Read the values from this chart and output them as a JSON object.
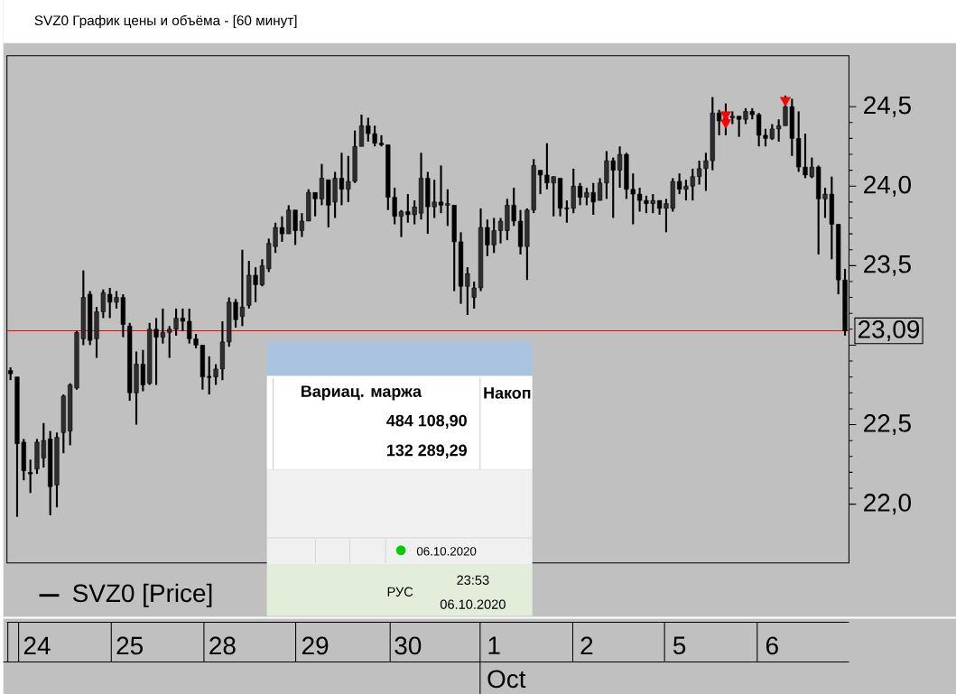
{
  "chart_data": {
    "type": "candlestick",
    "title": "SVZ0 График цены и объёма - [60 минут]",
    "ylim": [
      21.63,
      24.82
    ],
    "categories": [
      null,
      null,
      null,
      null,
      "24",
      null,
      null,
      null,
      null,
      null,
      null,
      null,
      null,
      null,
      null,
      null,
      null,
      null,
      "25",
      null,
      null,
      null,
      null,
      null,
      null,
      null,
      null,
      null,
      null,
      null,
      null,
      null,
      "28",
      null,
      null,
      null,
      null,
      null,
      null,
      null,
      null,
      null,
      null,
      null,
      null,
      null,
      "29",
      null,
      null,
      null,
      null,
      null,
      null,
      null,
      null,
      null,
      null,
      null,
      null,
      null,
      "30",
      null,
      null,
      null,
      null,
      null,
      null,
      null,
      null,
      null,
      null,
      null,
      null,
      "1",
      null,
      null,
      null,
      null,
      null,
      null,
      null,
      null,
      null,
      null,
      null,
      null,
      null,
      "2",
      null,
      null,
      null,
      null,
      null,
      null,
      null,
      null,
      null,
      null,
      null,
      null,
      null,
      "5",
      null,
      null,
      null,
      null,
      null,
      null,
      null,
      null,
      null,
      null,
      null,
      null,
      null,
      "6",
      null,
      null,
      null,
      null,
      null,
      null,
      null,
      null,
      null,
      null,
      null
    ],
    "yticks": [
      {
        "value": 22.0,
        "label": "22,0"
      },
      {
        "value": 22.5,
        "label": "22,5"
      },
      {
        "value": 23.0,
        "label": null
      },
      {
        "value": 23.5,
        "label": "23,5"
      },
      {
        "value": 24.0,
        "label": "24,0"
      },
      {
        "value": 24.5,
        "label": "24,5"
      }
    ],
    "ref_lines": [
      {
        "axis": "y",
        "value": 23.09,
        "label": "23,09",
        "color": "#ff0000"
      }
    ],
    "legend": "bottom left",
    "annotations": [
      "Вариац. маржа",
      "Накоп",
      "484 108,90",
      "132 289,29",
      "06.10.2020",
      "РУС",
      "23:53",
      "06.10.2020",
      "Oct"
    ],
    "series": [
      {
        "name": "SVZ0 [Price]",
        "color": "#000000",
        "ohlc": [
          [
            22.84,
            22.86,
            22.78,
            22.82
          ],
          [
            22.8,
            22.8,
            21.92,
            22.38
          ],
          [
            22.39,
            22.41,
            22.15,
            22.21
          ],
          [
            22.2,
            22.28,
            22.07,
            22.19
          ],
          [
            22.22,
            22.41,
            22.19,
            22.39
          ],
          [
            22.29,
            22.51,
            22.23,
            22.4
          ],
          [
            22.41,
            22.46,
            21.93,
            22.11
          ],
          [
            22.12,
            22.45,
            21.98,
            22.42
          ],
          [
            22.45,
            22.69,
            22.32,
            22.68
          ],
          [
            22.46,
            22.76,
            22.37,
            22.75
          ],
          [
            22.73,
            23.09,
            22.72,
            23.08
          ],
          [
            23.04,
            23.47,
            23.0,
            23.3
          ],
          [
            23.32,
            23.34,
            23.0,
            23.03
          ],
          [
            23.04,
            23.24,
            22.92,
            23.21
          ],
          [
            23.21,
            23.35,
            23.17,
            23.33
          ],
          [
            23.32,
            23.36,
            23.17,
            23.27
          ],
          [
            23.27,
            23.34,
            23.23,
            23.3
          ],
          [
            23.3,
            23.32,
            23.05,
            23.13
          ],
          [
            23.12,
            23.14,
            22.65,
            22.7
          ],
          [
            22.7,
            22.96,
            22.5,
            22.88
          ],
          [
            22.88,
            22.97,
            22.71,
            22.75
          ],
          [
            22.76,
            23.14,
            22.75,
            23.1
          ],
          [
            23.1,
            23.17,
            22.75,
            23.05
          ],
          [
            23.05,
            23.23,
            23.01,
            23.08
          ],
          [
            23.08,
            23.12,
            22.92,
            23.1
          ],
          [
            23.1,
            23.23,
            23.06,
            23.17
          ],
          [
            23.17,
            23.23,
            23.09,
            23.15
          ],
          [
            23.15,
            23.23,
            23.01,
            23.04
          ],
          [
            23.04,
            23.07,
            22.98,
            23.0
          ],
          [
            23.0,
            23.0,
            22.72,
            22.8
          ],
          [
            22.8,
            22.93,
            22.69,
            22.8
          ],
          [
            22.8,
            22.88,
            22.75,
            22.85
          ],
          [
            22.85,
            23.15,
            22.78,
            23.02
          ],
          [
            23.02,
            23.3,
            22.99,
            23.27
          ],
          [
            23.27,
            23.29,
            23.11,
            23.16
          ],
          [
            23.18,
            23.6,
            23.12,
            23.24
          ],
          [
            23.25,
            23.53,
            23.23,
            23.44
          ],
          [
            23.44,
            23.49,
            23.27,
            23.38
          ],
          [
            23.38,
            23.54,
            23.37,
            23.5
          ],
          [
            23.48,
            23.67,
            23.46,
            23.64
          ],
          [
            23.62,
            23.77,
            23.58,
            23.74
          ],
          [
            23.74,
            23.81,
            23.65,
            23.7
          ],
          [
            23.7,
            23.88,
            23.7,
            23.85
          ],
          [
            23.85,
            23.85,
            23.63,
            23.72
          ],
          [
            23.72,
            23.83,
            23.68,
            23.78
          ],
          [
            23.78,
            23.98,
            23.78,
            23.96
          ],
          [
            23.96,
            23.96,
            23.81,
            23.92
          ],
          [
            23.92,
            24.14,
            23.88,
            24.05
          ],
          [
            24.04,
            24.04,
            23.74,
            23.88
          ],
          [
            23.9,
            24.09,
            23.8,
            24.05
          ],
          [
            24.05,
            24.21,
            23.88,
            23.98
          ],
          [
            23.98,
            24.19,
            23.9,
            24.03
          ],
          [
            24.03,
            24.35,
            24.02,
            24.25
          ],
          [
            24.25,
            24.45,
            24.25,
            24.38
          ],
          [
            24.38,
            24.43,
            24.28,
            24.33
          ],
          [
            24.33,
            24.38,
            24.25,
            24.27
          ],
          [
            24.27,
            24.32,
            24.25,
            24.26
          ],
          [
            24.26,
            24.26,
            23.85,
            23.93
          ],
          [
            23.93,
            23.99,
            23.76,
            23.81
          ],
          [
            23.81,
            23.85,
            23.68,
            23.84
          ],
          [
            23.84,
            23.95,
            23.77,
            23.82
          ],
          [
            23.82,
            23.91,
            23.76,
            23.87
          ],
          [
            23.83,
            24.21,
            23.79,
            24.05
          ],
          [
            24.05,
            24.09,
            23.7,
            23.87
          ],
          [
            23.87,
            24.04,
            23.8,
            23.9
          ],
          [
            23.9,
            24.13,
            23.83,
            23.88
          ],
          [
            23.88,
            23.98,
            23.75,
            23.89
          ],
          [
            23.88,
            23.88,
            23.34,
            23.65
          ],
          [
            23.65,
            23.71,
            23.26,
            23.37
          ],
          [
            23.37,
            23.49,
            23.19,
            23.45
          ],
          [
            23.3,
            23.4,
            23.23,
            23.36
          ],
          [
            23.36,
            23.86,
            23.34,
            23.74
          ],
          [
            23.74,
            23.79,
            23.56,
            23.63
          ],
          [
            23.63,
            23.8,
            23.58,
            23.72
          ],
          [
            23.72,
            23.8,
            23.64,
            23.78
          ],
          [
            23.72,
            23.92,
            23.66,
            23.88
          ],
          [
            23.88,
            23.99,
            23.75,
            23.78
          ],
          [
            23.78,
            23.85,
            23.57,
            23.62
          ],
          [
            23.62,
            23.86,
            23.41,
            23.85
          ],
          [
            23.85,
            24.17,
            23.83,
            24.13
          ],
          [
            24.1,
            24.1,
            23.95,
            24.07
          ],
          [
            24.07,
            24.27,
            23.98,
            24.02
          ],
          [
            24.02,
            24.06,
            23.81,
            24.06
          ],
          [
            24.05,
            24.05,
            23.81,
            23.86
          ],
          [
            23.86,
            23.91,
            23.77,
            23.86
          ],
          [
            23.86,
            24.11,
            23.83,
            24.0
          ],
          [
            24.0,
            24.02,
            23.88,
            23.93
          ],
          [
            23.93,
            23.99,
            23.88,
            23.96
          ],
          [
            23.96,
            24.02,
            23.82,
            23.9
          ],
          [
            23.91,
            24.05,
            23.91,
            24.02
          ],
          [
            24.02,
            24.22,
            23.92,
            24.16
          ],
          [
            24.16,
            24.18,
            23.8,
            24.1
          ],
          [
            24.1,
            24.25,
            23.99,
            24.2
          ],
          [
            24.2,
            24.21,
            23.92,
            23.98
          ],
          [
            23.98,
            24.08,
            23.76,
            23.95
          ],
          [
            23.95,
            23.99,
            23.84,
            23.91
          ],
          [
            23.91,
            23.94,
            23.83,
            23.89
          ],
          [
            23.89,
            23.95,
            23.83,
            23.91
          ],
          [
            23.91,
            23.91,
            23.82,
            23.86
          ],
          [
            23.86,
            23.92,
            23.71,
            23.89
          ],
          [
            23.86,
            24.05,
            23.84,
            24.03
          ],
          [
            24.03,
            24.08,
            23.95,
            23.98
          ],
          [
            23.98,
            24.04,
            23.91,
            24.0
          ],
          [
            24.0,
            24.11,
            23.91,
            24.06
          ],
          [
            24.06,
            24.16,
            24.01,
            24.11
          ],
          [
            24.11,
            24.21,
            23.97,
            24.16
          ],
          [
            24.16,
            24.56,
            24.1,
            24.46
          ],
          [
            24.46,
            24.48,
            24.32,
            24.41
          ],
          [
            24.41,
            24.52,
            24.32,
            24.43
          ],
          [
            24.43,
            24.47,
            24.39,
            24.44
          ],
          [
            24.44,
            24.44,
            24.31,
            24.42
          ],
          [
            24.42,
            24.49,
            24.39,
            24.47
          ],
          [
            24.47,
            24.49,
            24.42,
            24.45
          ],
          [
            24.45,
            24.46,
            24.25,
            24.32
          ],
          [
            24.32,
            24.36,
            24.25,
            24.3
          ],
          [
            24.3,
            24.39,
            24.29,
            24.36
          ],
          [
            24.36,
            24.42,
            24.28,
            24.38
          ],
          [
            24.38,
            24.57,
            24.38,
            24.5
          ],
          [
            24.5,
            24.55,
            24.19,
            24.3
          ],
          [
            24.3,
            24.47,
            24.09,
            24.12
          ],
          [
            24.12,
            24.33,
            24.05,
            24.07
          ],
          [
            24.06,
            24.18,
            24.05,
            24.12
          ],
          [
            24.12,
            24.13,
            23.57,
            23.92
          ],
          [
            23.92,
            23.99,
            23.8,
            23.95
          ],
          [
            23.95,
            24.06,
            23.54,
            23.76
          ],
          [
            23.76,
            23.76,
            23.32,
            23.41
          ],
          [
            23.41,
            23.48,
            23.06,
            23.09
          ]
        ]
      },
      {
        "type": "scatter",
        "color": "#ff0000",
        "marker": "triangle",
        "values": [
          null,
          null,
          null,
          null,
          null,
          null,
          null,
          null,
          null,
          null,
          null,
          null,
          null,
          null,
          null,
          null,
          null,
          null,
          null,
          null,
          null,
          null,
          null,
          null,
          null,
          null,
          null,
          null,
          null,
          null,
          null,
          null,
          null,
          null,
          null,
          null,
          null,
          null,
          null,
          null,
          null,
          null,
          null,
          null,
          null,
          null,
          null,
          null,
          null,
          null,
          null,
          null,
          null,
          null,
          null,
          null,
          null,
          null,
          null,
          null,
          null,
          null,
          null,
          null,
          null,
          null,
          null,
          null,
          null,
          null,
          null,
          null,
          null,
          null,
          null,
          null,
          null,
          null,
          null,
          null,
          null,
          null,
          null,
          null,
          null,
          null,
          null,
          null,
          null,
          null,
          null,
          null,
          null,
          null,
          null,
          null,
          null,
          null,
          null,
          null,
          null,
          null,
          null,
          null,
          null,
          null,
          null,
          null,
          24.45,
          null,
          null,
          null,
          null,
          null,
          null,
          null,
          null,
          24.54,
          null,
          null,
          null,
          null,
          null,
          null,
          null,
          null,
          null
        ]
      },
      {
        "type": "scatter",
        "color": "#ff0000",
        "marker": "triangle",
        "values": [
          null,
          null,
          null,
          null,
          null,
          null,
          null,
          null,
          null,
          null,
          null,
          null,
          null,
          null,
          null,
          null,
          null,
          null,
          null,
          null,
          null,
          null,
          null,
          null,
          null,
          null,
          null,
          null,
          null,
          null,
          null,
          null,
          null,
          null,
          null,
          null,
          null,
          null,
          null,
          null,
          null,
          null,
          null,
          null,
          null,
          null,
          null,
          null,
          null,
          null,
          null,
          null,
          null,
          null,
          null,
          null,
          null,
          null,
          null,
          null,
          null,
          null,
          null,
          null,
          null,
          null,
          null,
          null,
          null,
          null,
          null,
          null,
          null,
          null,
          null,
          null,
          null,
          null,
          null,
          null,
          null,
          null,
          null,
          null,
          null,
          null,
          null,
          null,
          null,
          null,
          null,
          null,
          null,
          null,
          null,
          null,
          null,
          null,
          null,
          null,
          null,
          null,
          null,
          null,
          null,
          null,
          null,
          null,
          24.4,
          null,
          null,
          null,
          null,
          null,
          null,
          null,
          null,
          null,
          null,
          null,
          null,
          null,
          null,
          null,
          null,
          null,
          null
        ]
      }
    ]
  }
}
